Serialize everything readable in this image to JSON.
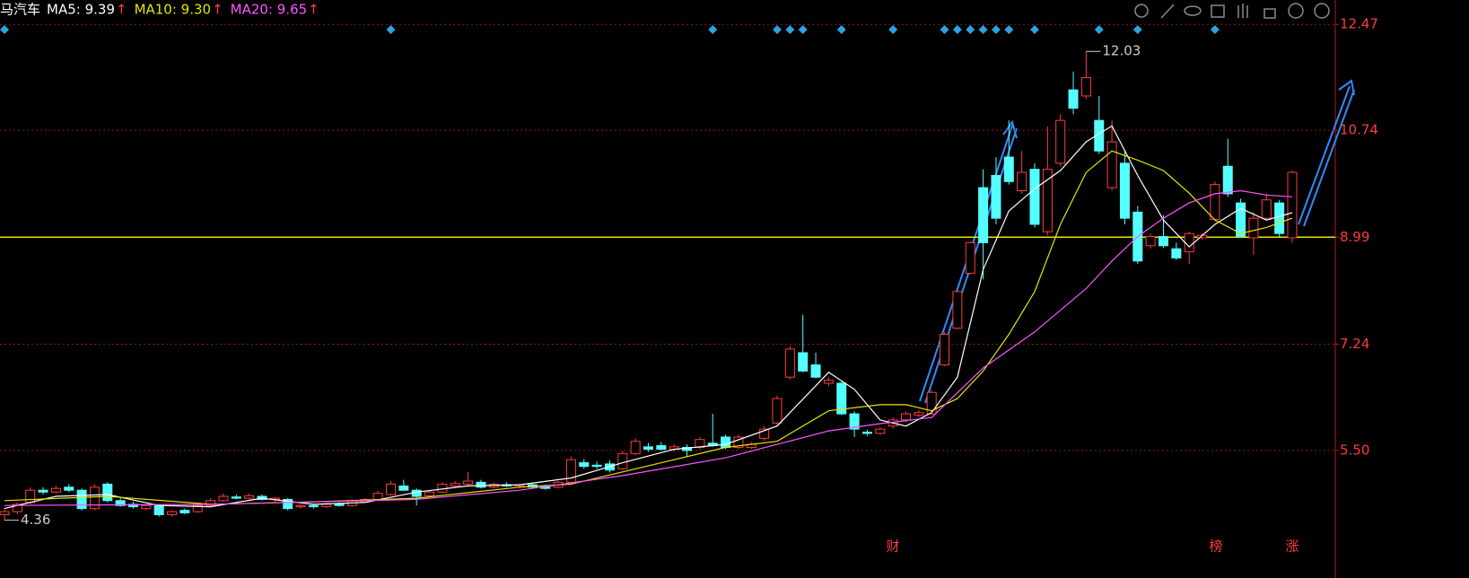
{
  "chart_data": {
    "type": "candlestick",
    "title": "马汽车",
    "ylim": [
      3.84,
      12.87
    ],
    "yticks": [
      12.47,
      10.74,
      8.99,
      7.24,
      {
        "value": 5.5,
        "label": "5.50"
      }
    ],
    "grid": true,
    "reference_line": {
      "value": 8.99,
      "color": "#e6e600"
    },
    "up_color": "#ff3c3c",
    "down_color": "#54ffff",
    "ohlc": [
      [
        4.45,
        4.55,
        4.36,
        4.5
      ],
      [
        4.5,
        4.65,
        4.46,
        4.62
      ],
      [
        4.65,
        4.9,
        4.62,
        4.85
      ],
      [
        4.85,
        4.9,
        4.78,
        4.82
      ],
      [
        4.82,
        4.92,
        4.8,
        4.88
      ],
      [
        4.9,
        4.95,
        4.82,
        4.85
      ],
      [
        4.85,
        4.88,
        4.52,
        4.55
      ],
      [
        4.55,
        4.95,
        4.52,
        4.9
      ],
      [
        4.95,
        4.98,
        4.65,
        4.68
      ],
      [
        4.68,
        4.72,
        4.58,
        4.6
      ],
      [
        4.62,
        4.66,
        4.55,
        4.58
      ],
      [
        4.55,
        4.62,
        4.52,
        4.6
      ],
      [
        4.6,
        4.62,
        4.42,
        4.45
      ],
      [
        4.45,
        4.52,
        4.42,
        4.5
      ],
      [
        4.52,
        4.55,
        4.46,
        4.48
      ],
      [
        4.5,
        4.62,
        4.48,
        4.6
      ],
      [
        4.6,
        4.72,
        4.58,
        4.68
      ],
      [
        4.68,
        4.8,
        4.66,
        4.75
      ],
      [
        4.74,
        4.78,
        4.7,
        4.72
      ],
      [
        4.72,
        4.8,
        4.7,
        4.76
      ],
      [
        4.75,
        4.78,
        4.68,
        4.7
      ],
      [
        4.7,
        4.74,
        4.66,
        4.72
      ],
      [
        4.7,
        4.72,
        4.52,
        4.55
      ],
      [
        4.58,
        4.62,
        4.55,
        4.6
      ],
      [
        4.6,
        4.62,
        4.55,
        4.58
      ],
      [
        4.58,
        4.64,
        4.56,
        4.62
      ],
      [
        4.62,
        4.65,
        4.58,
        4.6
      ],
      [
        4.6,
        4.7,
        4.58,
        4.68
      ],
      [
        4.66,
        4.72,
        4.64,
        4.7
      ],
      [
        4.7,
        4.84,
        4.68,
        4.8
      ],
      [
        4.78,
        5.0,
        4.76,
        4.95
      ],
      [
        4.92,
        5.02,
        4.84,
        4.85
      ],
      [
        4.85,
        4.88,
        4.6,
        4.75
      ],
      [
        4.76,
        4.85,
        4.74,
        4.82
      ],
      [
        4.82,
        4.98,
        4.8,
        4.95
      ],
      [
        4.92,
        5.0,
        4.9,
        4.96
      ],
      [
        4.95,
        5.15,
        4.92,
        5.0
      ],
      [
        4.98,
        5.02,
        4.88,
        4.9
      ],
      [
        4.9,
        4.98,
        4.88,
        4.95
      ],
      [
        4.94,
        4.98,
        4.9,
        4.92
      ],
      [
        4.92,
        4.96,
        4.88,
        4.94
      ],
      [
        4.94,
        4.96,
        4.88,
        4.9
      ],
      [
        4.92,
        4.94,
        4.86,
        4.88
      ],
      [
        4.9,
        5.0,
        4.88,
        4.98
      ],
      [
        4.98,
        5.4,
        4.96,
        5.35
      ],
      [
        5.3,
        5.36,
        5.2,
        5.24
      ],
      [
        5.26,
        5.32,
        5.2,
        5.24
      ],
      [
        5.28,
        5.34,
        5.14,
        5.18
      ],
      [
        5.2,
        5.5,
        5.18,
        5.45
      ],
      [
        5.45,
        5.7,
        5.42,
        5.65
      ],
      [
        5.56,
        5.62,
        5.48,
        5.52
      ],
      [
        5.58,
        5.64,
        5.5,
        5.52
      ],
      [
        5.52,
        5.6,
        5.48,
        5.56
      ],
      [
        5.55,
        5.6,
        5.4,
        5.5
      ],
      [
        5.55,
        5.72,
        5.52,
        5.68
      ],
      [
        5.62,
        6.1,
        5.56,
        5.58
      ],
      [
        5.72,
        5.76,
        5.52,
        5.55
      ],
      [
        5.55,
        5.76,
        5.52,
        5.72
      ],
      [
        5.55,
        5.64,
        5.52,
        5.6
      ],
      [
        5.7,
        5.9,
        5.66,
        5.85
      ],
      [
        5.95,
        6.4,
        5.92,
        6.35
      ],
      [
        6.7,
        7.2,
        6.66,
        7.16
      ],
      [
        7.1,
        7.72,
        6.78,
        6.8
      ],
      [
        6.9,
        7.1,
        6.68,
        6.7
      ],
      [
        6.6,
        6.7,
        6.55,
        6.65
      ],
      [
        6.6,
        6.64,
        6.08,
        6.1
      ],
      [
        6.1,
        6.14,
        5.72,
        5.85
      ],
      [
        5.8,
        5.84,
        5.74,
        5.78
      ],
      [
        5.78,
        5.88,
        5.76,
        5.85
      ],
      [
        5.9,
        6.04,
        5.86,
        6.0
      ],
      [
        6.0,
        6.14,
        5.96,
        6.1
      ],
      [
        6.08,
        6.16,
        6.04,
        6.12
      ],
      [
        6.1,
        6.48,
        6.08,
        6.45
      ],
      [
        6.9,
        7.44,
        6.88,
        7.4
      ],
      [
        7.5,
        8.12,
        7.48,
        8.1
      ],
      [
        8.4,
        8.92,
        8.38,
        8.9
      ],
      [
        9.8,
        10.1,
        8.3,
        8.9
      ],
      [
        10.0,
        10.3,
        9.2,
        9.3
      ],
      [
        10.3,
        10.9,
        9.85,
        9.9
      ],
      [
        9.75,
        10.4,
        9.7,
        10.05
      ],
      [
        10.1,
        10.2,
        9.15,
        9.2
      ],
      [
        9.08,
        10.8,
        9.02,
        10.1
      ],
      [
        10.2,
        11.0,
        10.15,
        10.9
      ],
      [
        11.4,
        11.7,
        11.0,
        11.1
      ],
      [
        11.3,
        12.03,
        11.25,
        11.6
      ],
      [
        10.9,
        11.3,
        10.35,
        10.4
      ],
      [
        9.8,
        10.9,
        9.75,
        10.55
      ],
      [
        10.2,
        10.4,
        9.2,
        9.3
      ],
      [
        9.4,
        9.5,
        8.55,
        8.6
      ],
      [
        8.85,
        9.05,
        8.8,
        9.0
      ],
      [
        9.0,
        9.35,
        8.82,
        8.85
      ],
      [
        8.8,
        8.9,
        8.62,
        8.65
      ],
      [
        8.75,
        9.08,
        8.55,
        9.05
      ],
      [
        8.98,
        9.06,
        8.95,
        9.02
      ],
      [
        9.28,
        9.9,
        9.25,
        9.85
      ],
      [
        10.15,
        10.6,
        9.65,
        9.7
      ],
      [
        9.55,
        9.62,
        8.98,
        9.0
      ],
      [
        8.98,
        9.4,
        8.7,
        9.3
      ],
      [
        9.3,
        9.7,
        9.26,
        9.6
      ],
      [
        9.55,
        9.6,
        9.0,
        9.05
      ],
      [
        8.98,
        10.08,
        8.9,
        10.05
      ]
    ],
    "high_marker": 12.03,
    "low_marker": 4.36,
    "series": [
      {
        "name": "MA5: 9.39",
        "trend": "↑",
        "color": "#ffffff",
        "x": [
          0,
          4,
          8,
          12,
          16,
          20,
          24,
          28,
          32,
          36,
          40,
          44,
          48,
          52,
          56,
          60,
          64,
          66,
          68,
          70,
          72,
          74,
          76,
          78,
          80,
          82,
          84,
          86,
          88,
          90,
          92,
          94,
          96,
          98,
          100
        ],
        "values": [
          4.55,
          4.75,
          4.78,
          4.6,
          4.58,
          4.72,
          4.62,
          4.65,
          4.82,
          4.92,
          4.94,
          5.05,
          5.3,
          5.52,
          5.6,
          5.9,
          6.78,
          6.5,
          6.0,
          5.9,
          6.12,
          6.7,
          8.46,
          9.42,
          9.78,
          10.08,
          10.55,
          10.81,
          10.0,
          9.27,
          8.83,
          9.2,
          9.46,
          9.27,
          9.39
        ]
      },
      {
        "name": "MA10: 9.30",
        "trend": "↑",
        "color": "#e6e600",
        "x": [
          0,
          8,
          16,
          24,
          32,
          40,
          44,
          48,
          52,
          56,
          60,
          64,
          68,
          70,
          72,
          74,
          76,
          78,
          80,
          82,
          84,
          86,
          88,
          90,
          92,
          94,
          96,
          98,
          100
        ],
        "values": [
          4.68,
          4.75,
          4.62,
          4.66,
          4.72,
          4.9,
          4.95,
          5.15,
          5.35,
          5.55,
          5.65,
          6.15,
          6.25,
          6.25,
          6.15,
          6.35,
          6.8,
          7.4,
          8.1,
          9.2,
          10.05,
          10.4,
          10.25,
          10.08,
          9.71,
          9.27,
          9.05,
          9.15,
          9.3
        ]
      },
      {
        "name": "MA20: 9.65",
        "trend": "↑",
        "color": "#ff55ff",
        "x": [
          0,
          16,
          32,
          40,
          48,
          56,
          60,
          64,
          68,
          72,
          76,
          80,
          84,
          86,
          88,
          90,
          92,
          94,
          96,
          98,
          100
        ],
        "values": [
          4.6,
          4.62,
          4.7,
          4.85,
          5.09,
          5.38,
          5.6,
          5.82,
          5.94,
          6.04,
          6.85,
          7.44,
          8.15,
          8.6,
          9.0,
          9.3,
          9.55,
          9.7,
          9.75,
          9.68,
          9.65
        ]
      }
    ],
    "events": [
      "财",
      "榜",
      "涨"
    ]
  }
}
